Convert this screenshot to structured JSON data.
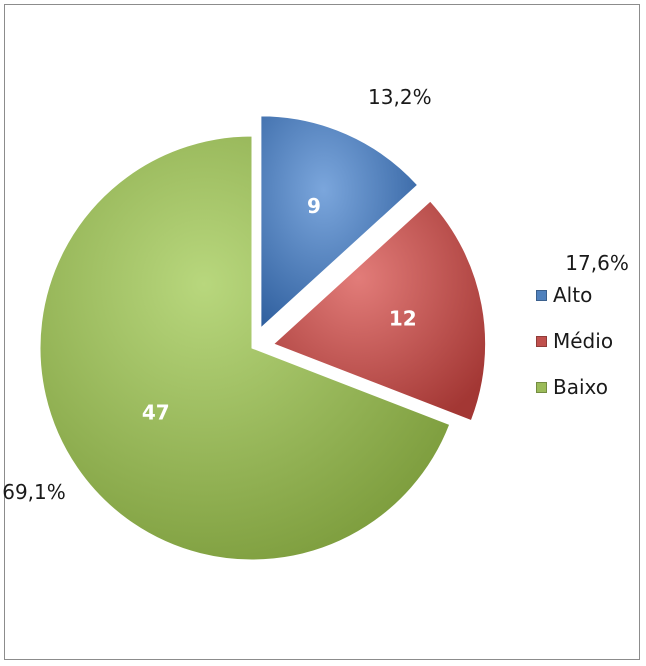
{
  "chart_data": {
    "type": "pie",
    "categories": [
      "Alto",
      "Médio",
      "Baixo"
    ],
    "values": [
      9,
      12,
      47
    ],
    "percent_labels": [
      "13,2%",
      "17,6%",
      "69,1%"
    ],
    "colors": [
      "#4f81bd",
      "#c0504d",
      "#9bbb59"
    ],
    "exploded": true,
    "legend_position": "right"
  }
}
